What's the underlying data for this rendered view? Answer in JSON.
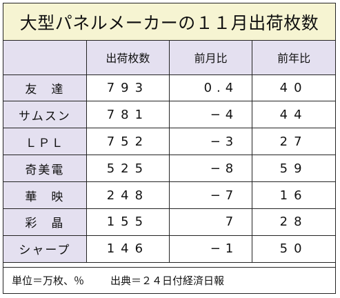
{
  "title": "大型パネルメーカーの１１月出荷枚数",
  "columns": [
    "",
    "出荷枚数",
    "前月比",
    "前年比"
  ],
  "rows": [
    {
      "maker": "友　達",
      "shipments": "793",
      "mom": "0.4",
      "yoy": "40"
    },
    {
      "maker": "サムスン",
      "shipments": "781",
      "mom": "−4",
      "yoy": "44"
    },
    {
      "maker": "ＬＰＬ",
      "shipments": "752",
      "mom": "−3",
      "yoy": "27"
    },
    {
      "maker": "奇美電",
      "shipments": "525",
      "mom": "−8",
      "yoy": "59"
    },
    {
      "maker": "華　映",
      "shipments": "248",
      "mom": "−7",
      "yoy": "16"
    },
    {
      "maker": "彩　晶",
      "shipments": "155",
      "mom": "7",
      "yoy": "28"
    },
    {
      "maker": "シャープ",
      "shipments": "146",
      "mom": "−1",
      "yoy": "50"
    }
  ],
  "footer": {
    "units": "単位＝万枚、％",
    "source": "出典＝２４日付経済日報"
  },
  "colors": {
    "title_bg": "#f6f4d2",
    "header_bg": "#e4e0f0",
    "border": "#222222"
  }
}
